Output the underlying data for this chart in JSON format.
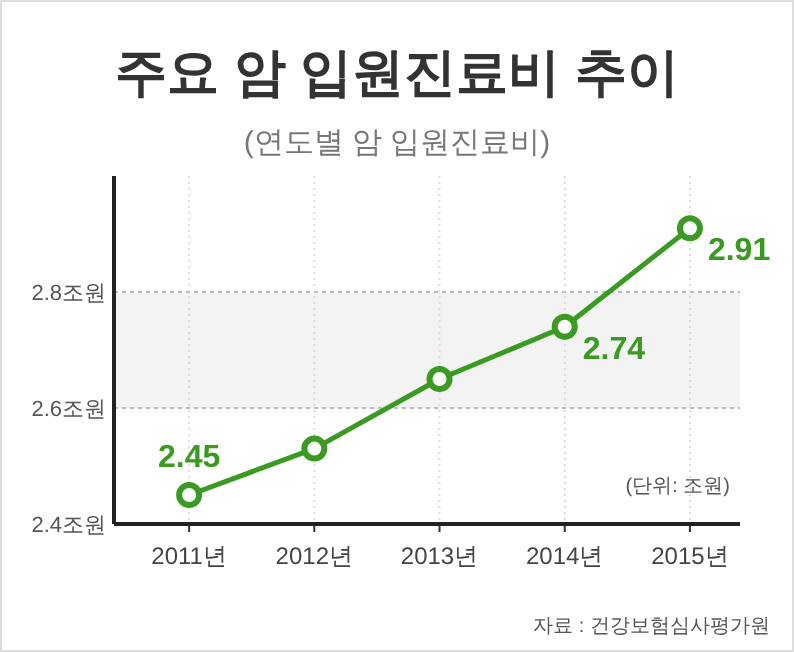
{
  "chart_data": {
    "type": "line",
    "title": "주요 암 입원진료비 추이",
    "subtitle": "(연도별 암 입원진료비)",
    "categories": [
      "2011년",
      "2012년",
      "2013년",
      "2014년",
      "2015년"
    ],
    "series": [
      {
        "color": "#3a9a22",
        "values": [
          2.45,
          2.53,
          2.65,
          2.74,
          2.91
        ],
        "value_labels": [
          "2.45",
          null,
          null,
          "2.74",
          "2.91"
        ]
      }
    ],
    "ylim": [
      2.4,
      3.0
    ],
    "yticks": [
      {
        "value": 2.4,
        "label": "2.4조원"
      },
      {
        "value": 2.6,
        "label": "2.6조원"
      },
      {
        "value": 2.8,
        "label": "2.8조원"
      }
    ],
    "bands": [
      {
        "axis": "y",
        "from": 2.6,
        "to": 2.8,
        "color": "#f3f3f3"
      }
    ],
    "grid": true,
    "marker": "circle",
    "line_style": "solid",
    "annotations": [
      "(단위: 조원)",
      "자료 : 건강보험심사평가원"
    ]
  }
}
